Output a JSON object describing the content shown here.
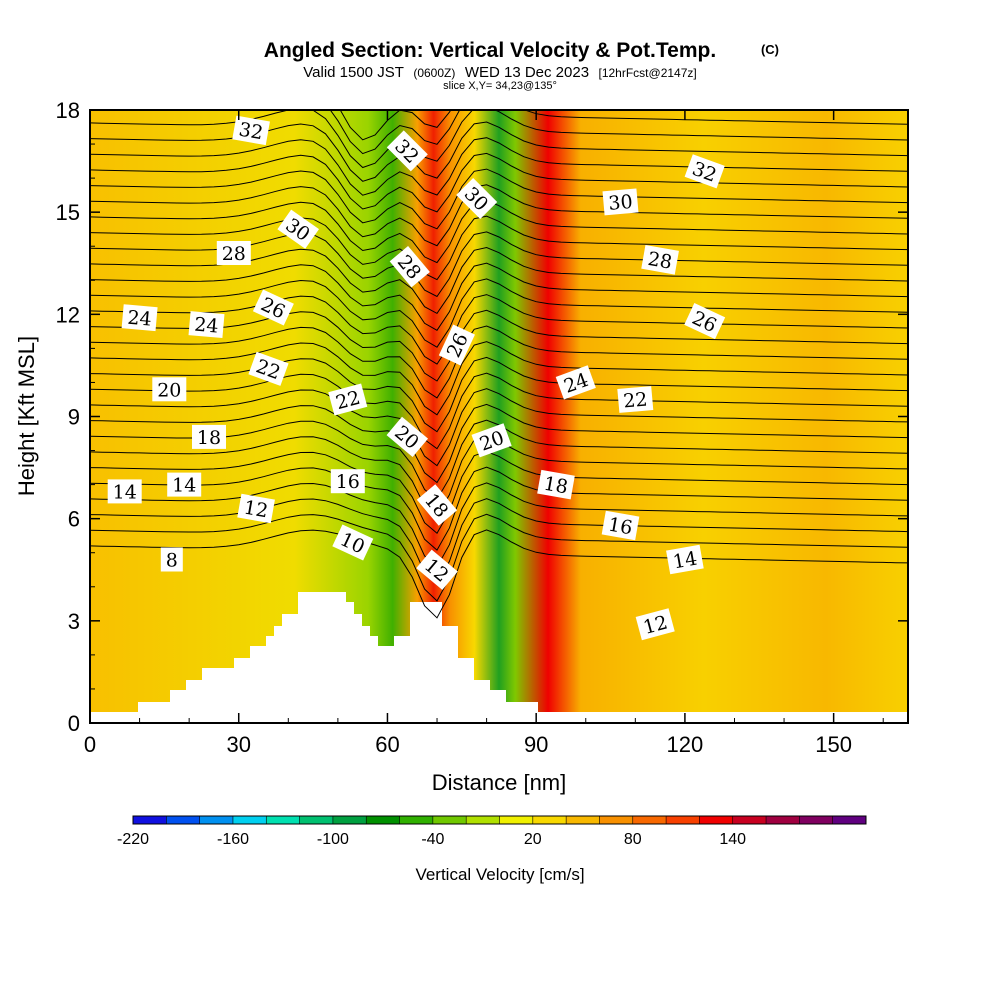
{
  "titles": {
    "main": "Angled Section: Vertical Velocity & Pot.Temp.",
    "copyright": "(C)",
    "valid_prefix": "Valid 1500 JST",
    "valid_utc": "(0600Z)",
    "valid_date": "WED 13 Dec 2023",
    "forecast": "[12hrFcst@2147z]",
    "slice": "slice X,Y= 34,23@135°"
  },
  "chart_data": {
    "type": "heatmap",
    "xlabel": "Distance [nm]",
    "ylabel": "Height [Kft MSL]",
    "xlim": [
      0,
      165
    ],
    "ylim": [
      0,
      18
    ],
    "xticks": [
      0,
      30,
      60,
      90,
      120,
      150
    ],
    "yticks": [
      0,
      3,
      6,
      9,
      12,
      15,
      18
    ],
    "colorbar": {
      "title": "Vertical Velocity [cm/s]",
      "min": -220,
      "step": 20,
      "tick_labels": [
        "-220",
        "-160",
        "-100",
        "-40",
        "20",
        "80",
        "140"
      ],
      "colors": [
        "#1010e0",
        "#0050f0",
        "#0090f0",
        "#00d0f0",
        "#00e0b0",
        "#00c070",
        "#00a040",
        "#009000",
        "#30b000",
        "#70c800",
        "#b0e000",
        "#f0f000",
        "#f8d800",
        "#f8b800",
        "#f89000",
        "#f86800",
        "#f84000",
        "#f00000",
        "#c80020",
        "#a00040",
        "#800060",
        "#600080"
      ]
    },
    "contour_variable": "Potential Temperature",
    "contour_labels": [
      {
        "text": "32",
        "x": 32.5,
        "y": 17.4,
        "rot": 10
      },
      {
        "text": "32",
        "x": 64,
        "y": 16.8,
        "rot": 45
      },
      {
        "text": "30",
        "x": 78,
        "y": 15.4,
        "rot": 45
      },
      {
        "text": "32",
        "x": 124,
        "y": 16.2,
        "rot": 20
      },
      {
        "text": "30",
        "x": 42,
        "y": 14.5,
        "rot": 35
      },
      {
        "text": "30",
        "x": 107,
        "y": 15.3,
        "rot": -5
      },
      {
        "text": "28",
        "x": 29,
        "y": 13.8,
        "rot": 0
      },
      {
        "text": "28",
        "x": 64.5,
        "y": 13.4,
        "rot": 50
      },
      {
        "text": "28",
        "x": 115,
        "y": 13.6,
        "rot": 10
      },
      {
        "text": "26",
        "x": 37,
        "y": 12.2,
        "rot": 25
      },
      {
        "text": "26",
        "x": 74,
        "y": 11.1,
        "rot": -65
      },
      {
        "text": "26",
        "x": 124,
        "y": 11.8,
        "rot": 25
      },
      {
        "text": "24",
        "x": 10,
        "y": 11.9,
        "rot": 5
      },
      {
        "text": "24",
        "x": 23.5,
        "y": 11.7,
        "rot": 5
      },
      {
        "text": "24",
        "x": 98,
        "y": 10.0,
        "rot": -20
      },
      {
        "text": "22",
        "x": 36,
        "y": 10.4,
        "rot": 20
      },
      {
        "text": "22",
        "x": 52,
        "y": 9.5,
        "rot": -15
      },
      {
        "text": "22",
        "x": 110,
        "y": 9.5,
        "rot": -5
      },
      {
        "text": "20",
        "x": 16,
        "y": 9.8,
        "rot": 0
      },
      {
        "text": "20",
        "x": 64,
        "y": 8.4,
        "rot": 40
      },
      {
        "text": "20",
        "x": 81,
        "y": 8.3,
        "rot": -20
      },
      {
        "text": "18",
        "x": 24,
        "y": 8.4,
        "rot": 0
      },
      {
        "text": "18",
        "x": 70,
        "y": 6.4,
        "rot": 50
      },
      {
        "text": "18",
        "x": 94,
        "y": 7.0,
        "rot": 10
      },
      {
        "text": "16",
        "x": 52,
        "y": 7.1,
        "rot": 0
      },
      {
        "text": "16",
        "x": 107,
        "y": 5.8,
        "rot": 10
      },
      {
        "text": "14",
        "x": 7,
        "y": 6.8,
        "rot": 0
      },
      {
        "text": "14",
        "x": 19,
        "y": 7.0,
        "rot": 0
      },
      {
        "text": "14",
        "x": 120,
        "y": 4.8,
        "rot": -10
      },
      {
        "text": "12",
        "x": 33.5,
        "y": 6.3,
        "rot": 10
      },
      {
        "text": "12",
        "x": 70,
        "y": 4.5,
        "rot": 40
      },
      {
        "text": "12",
        "x": 114,
        "y": 2.9,
        "rot": -15
      },
      {
        "text": "10",
        "x": 53,
        "y": 5.3,
        "rot": 25
      },
      {
        "text": "8",
        "x": 16.5,
        "y": 4.8,
        "rot": 0
      }
    ]
  }
}
